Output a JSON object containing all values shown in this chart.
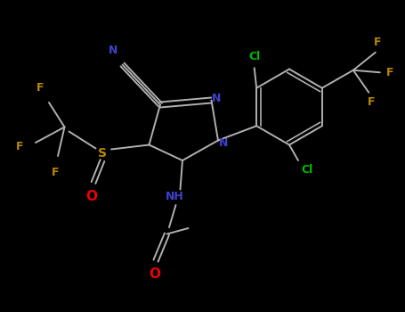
{
  "background": "#000000",
  "bond_color": "#b0b0b0",
  "colors": {
    "N": "#4040cc",
    "Cl": "#00bb00",
    "F": "#bb8800",
    "O": "#ee0000",
    "S": "#bb8800",
    "C": "#b0b0b0"
  },
  "figsize": [
    4.55,
    3.5
  ],
  "dpi": 100
}
